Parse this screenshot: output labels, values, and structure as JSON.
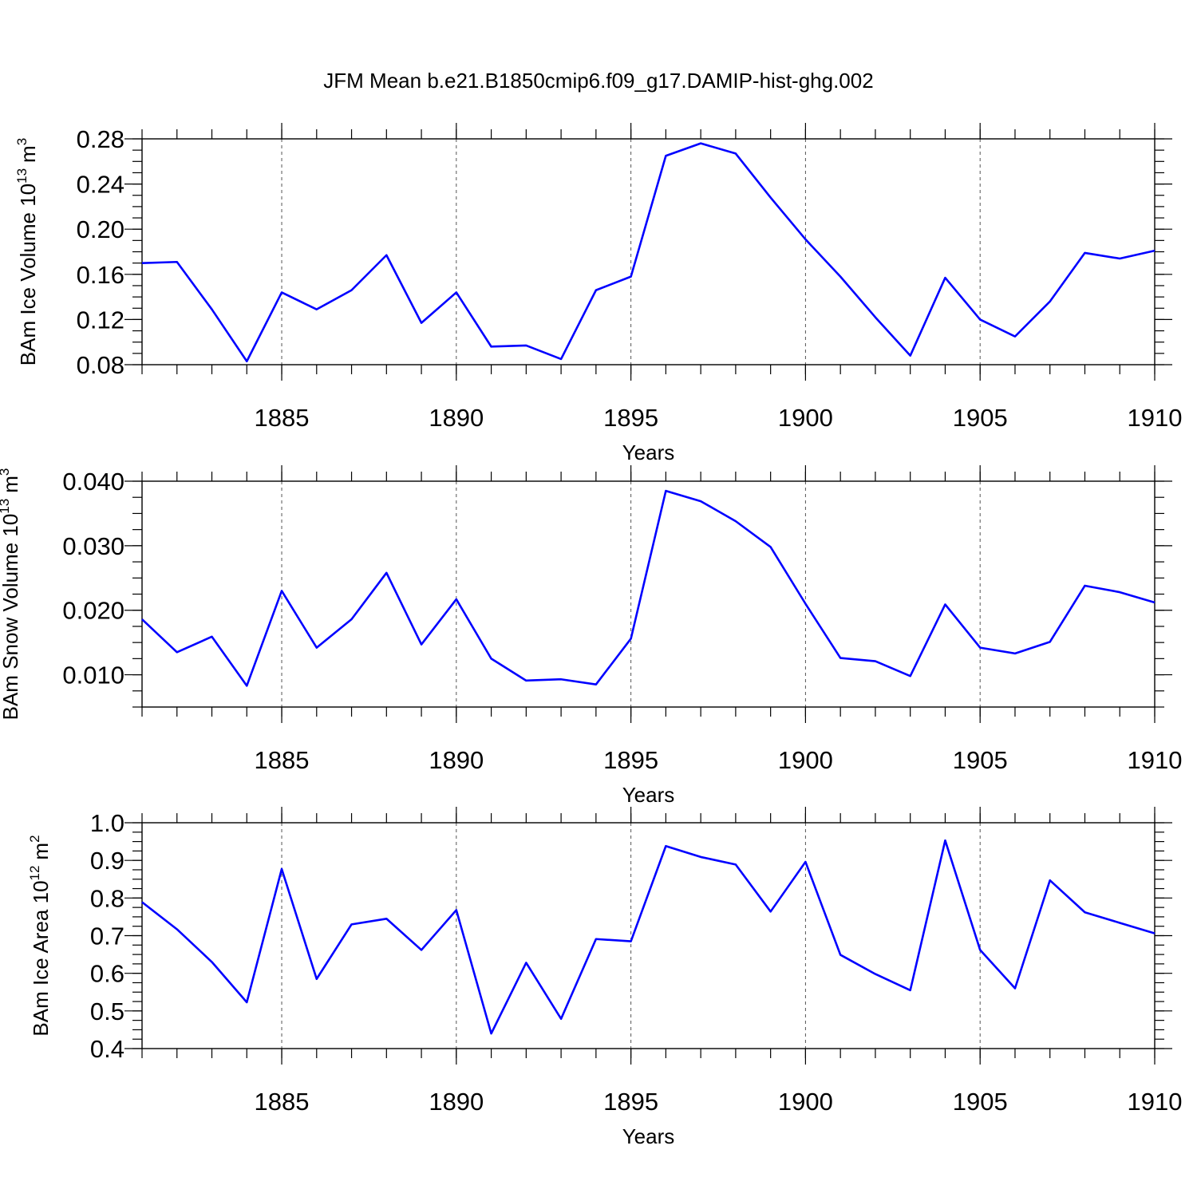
{
  "chart_data": [
    {
      "type": "line",
      "title": "JFM Mean b.e21.B1850cmip6.f09_g17.DAMIP-hist-ghg.002",
      "x": [
        1881,
        1882,
        1883,
        1884,
        1885,
        1886,
        1887,
        1888,
        1889,
        1890,
        1891,
        1892,
        1893,
        1894,
        1895,
        1896,
        1897,
        1898,
        1899,
        1900,
        1901,
        1902,
        1903,
        1904,
        1905,
        1906,
        1907,
        1908,
        1909,
        1910
      ],
      "values": [
        0.17,
        0.171,
        0.129,
        0.083,
        0.144,
        0.129,
        0.146,
        0.177,
        0.117,
        0.144,
        0.096,
        0.097,
        0.085,
        0.146,
        0.158,
        0.265,
        0.276,
        0.267,
        0.228,
        0.191,
        0.158,
        0.122,
        0.088,
        0.157,
        0.12,
        0.105,
        0.136,
        0.179,
        0.174,
        0.181
      ],
      "color": "#0000ff",
      "xlim": [
        1881,
        1910
      ],
      "xticks": [
        1885,
        1890,
        1895,
        1900,
        1905,
        1910
      ],
      "ylim": [
        0.08,
        0.28
      ],
      "yticks": [
        0.08,
        0.12,
        0.16,
        {
          "value": 0.2,
          "label": "0.20"
        },
        0.24,
        0.28
      ],
      "xlabel": "Years",
      "ylabel": [
        "BAm Ice Volume 10",
        "13",
        "m",
        "3"
      ],
      "grid": true
    },
    {
      "type": "line",
      "x": [
        1881,
        1882,
        1883,
        1884,
        1885,
        1886,
        1887,
        1888,
        1889,
        1890,
        1891,
        1892,
        1893,
        1894,
        1895,
        1896,
        1897,
        1898,
        1899,
        1900,
        1901,
        1902,
        1903,
        1904,
        1905,
        1906,
        1907,
        1908,
        1909,
        1910
      ],
      "values": [
        0.0186,
        0.0135,
        0.0159,
        0.0083,
        0.023,
        0.0142,
        0.0186,
        0.0258,
        0.0147,
        0.0217,
        0.0125,
        0.0091,
        0.0093,
        0.0085,
        0.0156,
        0.0385,
        0.0369,
        0.0338,
        0.0298,
        0.021,
        0.0126,
        0.0121,
        0.0098,
        0.0209,
        0.0142,
        0.0133,
        0.0151,
        0.0238,
        0.0228,
        0.0212
      ],
      "color": "#0000ff",
      "xlim": [
        1881,
        1910
      ],
      "xticks": [
        1885,
        1890,
        1895,
        1900,
        1905,
        1910
      ],
      "ylim": [
        0.005,
        0.04
      ],
      "yticks": [
        {
          "value": 0.01,
          "label": "0.010"
        },
        {
          "value": 0.02,
          "label": "0.020"
        },
        {
          "value": 0.03,
          "label": "0.030"
        },
        {
          "value": 0.04,
          "label": "0.040"
        }
      ],
      "xlabel": "Years",
      "ylabel": [
        "BAm Snow Volume 10",
        "13",
        "m",
        "3"
      ],
      "grid": true
    },
    {
      "type": "line",
      "x": [
        1881,
        1882,
        1883,
        1884,
        1885,
        1886,
        1887,
        1888,
        1889,
        1890,
        1891,
        1892,
        1893,
        1894,
        1895,
        1896,
        1897,
        1898,
        1899,
        1900,
        1901,
        1902,
        1903,
        1904,
        1905,
        1906,
        1907,
        1908,
        1909,
        1910
      ],
      "values": [
        0.789,
        0.717,
        0.63,
        0.523,
        0.877,
        0.585,
        0.73,
        0.745,
        0.662,
        0.768,
        0.44,
        0.628,
        0.479,
        0.691,
        0.685,
        0.938,
        0.909,
        0.889,
        0.764,
        0.896,
        0.649,
        0.598,
        0.555,
        0.953,
        0.662,
        0.56,
        0.847,
        0.762,
        0.734,
        0.706
      ],
      "color": "#0000ff",
      "xlim": [
        1881,
        1910
      ],
      "xticks": [
        1885,
        1890,
        1895,
        1900,
        1905,
        1910
      ],
      "ylim": [
        0.4,
        1.0
      ],
      "yticks": [
        0.4,
        0.5,
        0.6,
        0.7,
        0.8,
        0.9,
        {
          "value": 1.0,
          "label": "1.0"
        }
      ],
      "xlabel": "Years",
      "ylabel": [
        "BAm Ice Area 10",
        "12",
        "m",
        "2"
      ],
      "grid": true
    }
  ]
}
